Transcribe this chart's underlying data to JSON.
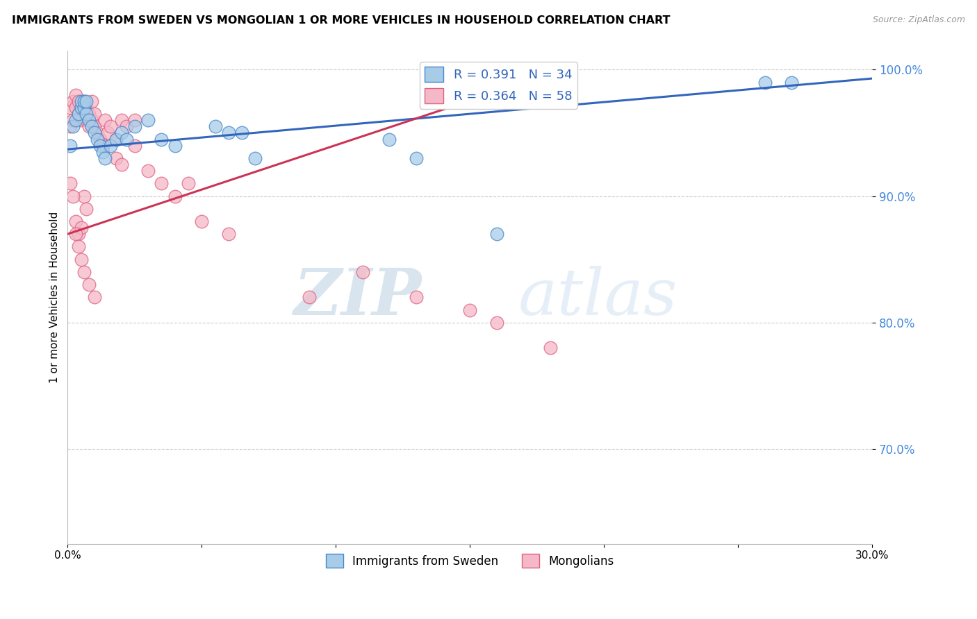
{
  "title": "IMMIGRANTS FROM SWEDEN VS MONGOLIAN 1 OR MORE VEHICLES IN HOUSEHOLD CORRELATION CHART",
  "source": "Source: ZipAtlas.com",
  "ylabel": "1 or more Vehicles in Household",
  "xmin": 0.0,
  "xmax": 0.3,
  "ymin": 0.625,
  "ymax": 1.015,
  "yticks": [
    0.7,
    0.8,
    0.9,
    1.0
  ],
  "ytick_labels": [
    "70.0%",
    "80.0%",
    "90.0%",
    "100.0%"
  ],
  "xticks": [
    0.0,
    0.05,
    0.1,
    0.15,
    0.2,
    0.25,
    0.3
  ],
  "xtick_labels": [
    "0.0%",
    "",
    "",
    "",
    "",
    "",
    "30.0%"
  ],
  "r_sweden": 0.391,
  "n_sweden": 34,
  "r_mongolian": 0.364,
  "n_mongolian": 58,
  "color_sweden_fill": "#a8cce8",
  "color_mongolian_fill": "#f4b8c8",
  "color_sweden_edge": "#4488cc",
  "color_mongolian_edge": "#e06080",
  "color_sweden_line": "#3366bb",
  "color_mongolian_line": "#cc3355",
  "watermark_zip": "ZIP",
  "watermark_atlas": "atlas",
  "sweden_x": [
    0.001,
    0.002,
    0.003,
    0.004,
    0.005,
    0.005,
    0.006,
    0.006,
    0.007,
    0.007,
    0.008,
    0.009,
    0.01,
    0.011,
    0.012,
    0.013,
    0.014,
    0.016,
    0.018,
    0.02,
    0.022,
    0.025,
    0.03,
    0.035,
    0.04,
    0.055,
    0.06,
    0.065,
    0.07,
    0.12,
    0.13,
    0.16,
    0.26,
    0.27
  ],
  "sweden_y": [
    0.94,
    0.955,
    0.96,
    0.965,
    0.97,
    0.975,
    0.97,
    0.975,
    0.965,
    0.975,
    0.96,
    0.955,
    0.95,
    0.945,
    0.94,
    0.935,
    0.93,
    0.94,
    0.945,
    0.95,
    0.945,
    0.955,
    0.96,
    0.945,
    0.94,
    0.955,
    0.95,
    0.95,
    0.93,
    0.945,
    0.93,
    0.87,
    0.99,
    0.99
  ],
  "mongolian_x": [
    0.001,
    0.001,
    0.002,
    0.002,
    0.003,
    0.003,
    0.004,
    0.004,
    0.005,
    0.005,
    0.006,
    0.006,
    0.007,
    0.007,
    0.008,
    0.008,
    0.009,
    0.009,
    0.01,
    0.01,
    0.011,
    0.012,
    0.013,
    0.014,
    0.015,
    0.016,
    0.018,
    0.02,
    0.022,
    0.025,
    0.003,
    0.004,
    0.005,
    0.006,
    0.007,
    0.018,
    0.02,
    0.025,
    0.03,
    0.035,
    0.04,
    0.045,
    0.05,
    0.06,
    0.09,
    0.11,
    0.13,
    0.15,
    0.16,
    0.18,
    0.001,
    0.002,
    0.003,
    0.004,
    0.005,
    0.006,
    0.008,
    0.01
  ],
  "mongolian_y": [
    0.97,
    0.955,
    0.975,
    0.96,
    0.97,
    0.98,
    0.975,
    0.965,
    0.97,
    0.96,
    0.975,
    0.965,
    0.97,
    0.96,
    0.965,
    0.955,
    0.96,
    0.975,
    0.965,
    0.955,
    0.95,
    0.945,
    0.94,
    0.96,
    0.95,
    0.955,
    0.945,
    0.96,
    0.955,
    0.96,
    0.88,
    0.87,
    0.875,
    0.9,
    0.89,
    0.93,
    0.925,
    0.94,
    0.92,
    0.91,
    0.9,
    0.91,
    0.88,
    0.87,
    0.82,
    0.84,
    0.82,
    0.81,
    0.8,
    0.78,
    0.91,
    0.9,
    0.87,
    0.86,
    0.85,
    0.84,
    0.83,
    0.82
  ],
  "blue_line_x0": 0.0,
  "blue_line_y0": 0.937,
  "blue_line_x1": 0.3,
  "blue_line_y1": 0.993,
  "pink_line_x0": 0.0,
  "pink_line_y0": 0.87,
  "pink_line_x1": 0.175,
  "pink_line_y1": 0.993
}
